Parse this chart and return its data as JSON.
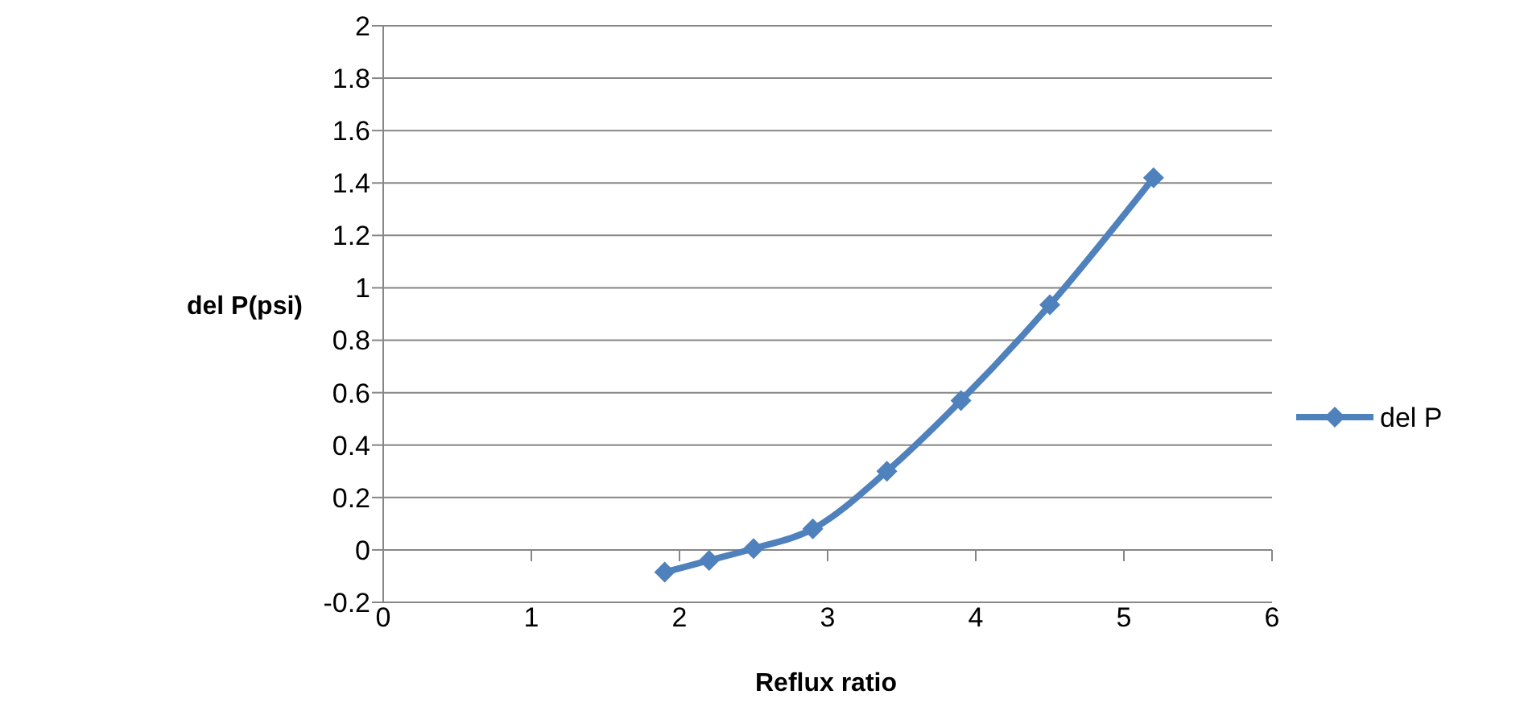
{
  "chart_data": {
    "type": "line",
    "xlabel": "Reflux ratio",
    "ylabel": "del P(psi)",
    "x": [
      1.9,
      2.2,
      2.5,
      2.9,
      3.4,
      3.9,
      4.5,
      5.2
    ],
    "series": [
      {
        "name": "del P",
        "color": "#4f81bd",
        "values": [
          -0.085,
          -0.04,
          0.005,
          0.08,
          0.3,
          0.57,
          0.935,
          1.42
        ]
      }
    ],
    "xlim": [
      0,
      6
    ],
    "xticks": [
      0,
      1,
      2,
      3,
      4,
      5,
      6
    ],
    "ylim": [
      -0.2,
      2
    ],
    "yticks": [
      -0.2,
      0,
      0.2,
      0.4,
      0.6,
      0.8,
      1,
      1.2,
      1.4,
      1.6,
      1.8,
      2
    ],
    "grid": "y",
    "legend": "right",
    "marker": "diamond",
    "line_style": "solid"
  }
}
